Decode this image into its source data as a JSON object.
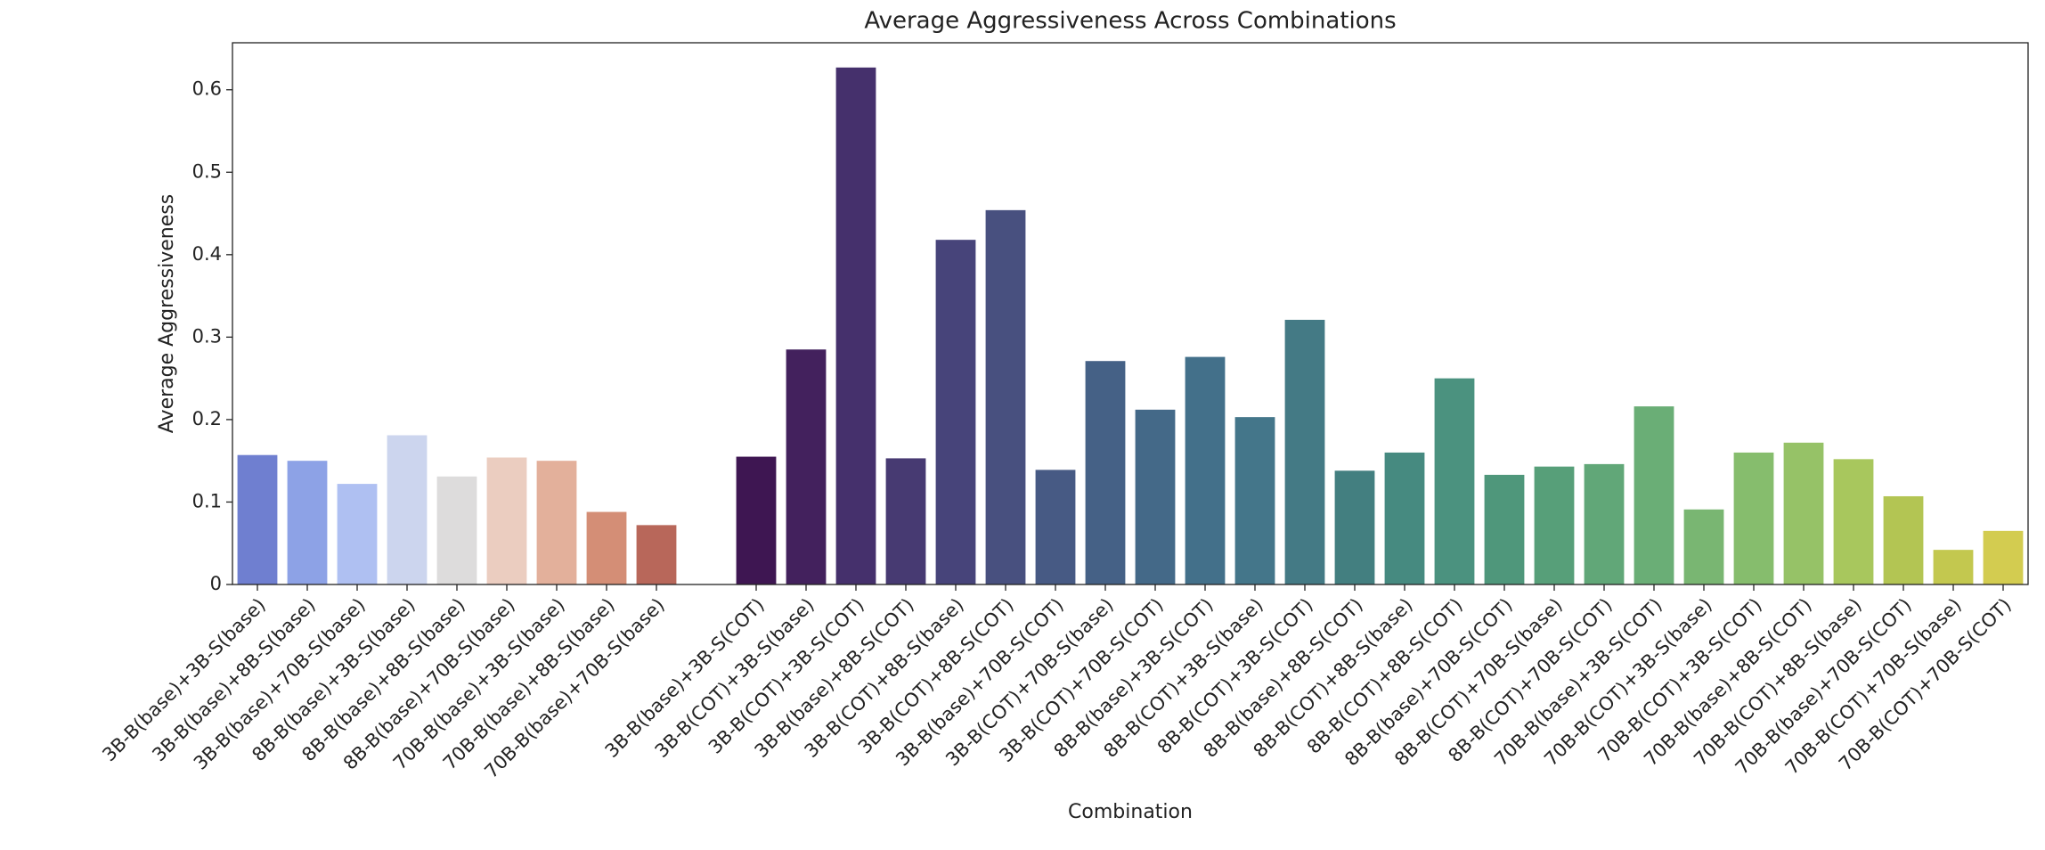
{
  "chart_data": {
    "type": "bar",
    "title": "Average Aggressiveness Across Combinations",
    "x_label": "Combination",
    "y_label": "Average Aggressiveness",
    "categories": [
      "3B-B(base)+3B-S(base)",
      "3B-B(base)+8B-S(base)",
      "3B-B(base)+70B-S(base)",
      "8B-B(base)+3B-S(base)",
      "8B-B(base)+8B-S(base)",
      "8B-B(base)+70B-S(base)",
      "70B-B(base)+3B-S(base)",
      "70B-B(base)+8B-S(base)",
      "70B-B(base)+70B-S(base)",
      null,
      "3B-B(base)+3B-S(COT)",
      "3B-B(COT)+3B-S(base)",
      "3B-B(COT)+3B-S(COT)",
      "3B-B(base)+8B-S(COT)",
      "3B-B(COT)+8B-S(base)",
      "3B-B(COT)+8B-S(COT)",
      "3B-B(base)+70B-S(COT)",
      "3B-B(COT)+70B-S(base)",
      "3B-B(COT)+70B-S(COT)",
      "8B-B(base)+3B-S(COT)",
      "8B-B(COT)+3B-S(base)",
      "8B-B(COT)+3B-S(COT)",
      "8B-B(base)+8B-S(COT)",
      "8B-B(COT)+8B-S(base)",
      "8B-B(COT)+8B-S(COT)",
      "8B-B(base)+70B-S(COT)",
      "8B-B(COT)+70B-S(base)",
      "8B-B(COT)+70B-S(COT)",
      "70B-B(base)+3B-S(COT)",
      "70B-B(COT)+3B-S(base)",
      "70B-B(COT)+3B-S(COT)",
      "70B-B(base)+8B-S(COT)",
      "70B-B(COT)+8B-S(base)",
      "70B-B(base)+70B-S(COT)",
      "70B-B(COT)+70B-S(base)",
      "70B-B(COT)+70B-S(COT)"
    ],
    "values": [
      0.157,
      0.15,
      0.122,
      0.181,
      0.131,
      0.154,
      0.15,
      0.088,
      0.072,
      null,
      0.155,
      0.285,
      0.627,
      0.153,
      0.418,
      0.454,
      0.139,
      0.271,
      0.212,
      0.276,
      0.203,
      0.321,
      0.138,
      0.16,
      0.25,
      0.133,
      0.143,
      0.146,
      0.216,
      0.091,
      0.16,
      0.172,
      0.152,
      0.107,
      0.042,
      0.065
    ],
    "colors": [
      "#6f7fd0",
      "#8da2e6",
      "#afc0f2",
      "#ccd5ee",
      "#dddcdc",
      "#ebcdc0",
      "#e3b09b",
      "#d48e76",
      "#b8675a",
      null,
      "#3e1652",
      "#43215d",
      "#45306c",
      "#473a72",
      "#47447a",
      "#48507f",
      "#475a84",
      "#456186",
      "#446988",
      "#43708a",
      "#44768a",
      "#447a85",
      "#437f80",
      "#468a80",
      "#4b927f",
      "#4f977b",
      "#579f79",
      "#61a778",
      "#6aae76",
      "#79b672",
      "#86bd6d",
      "#96c267",
      "#a8c75d",
      "#b3c553",
      "#c3c84f",
      "#d3cc50"
    ],
    "ylim": [
      0,
      0.657
    ],
    "yticks": [
      0.0,
      0.1,
      0.2,
      0.3,
      0.4,
      0.5,
      0.6
    ],
    "grid": false
  }
}
